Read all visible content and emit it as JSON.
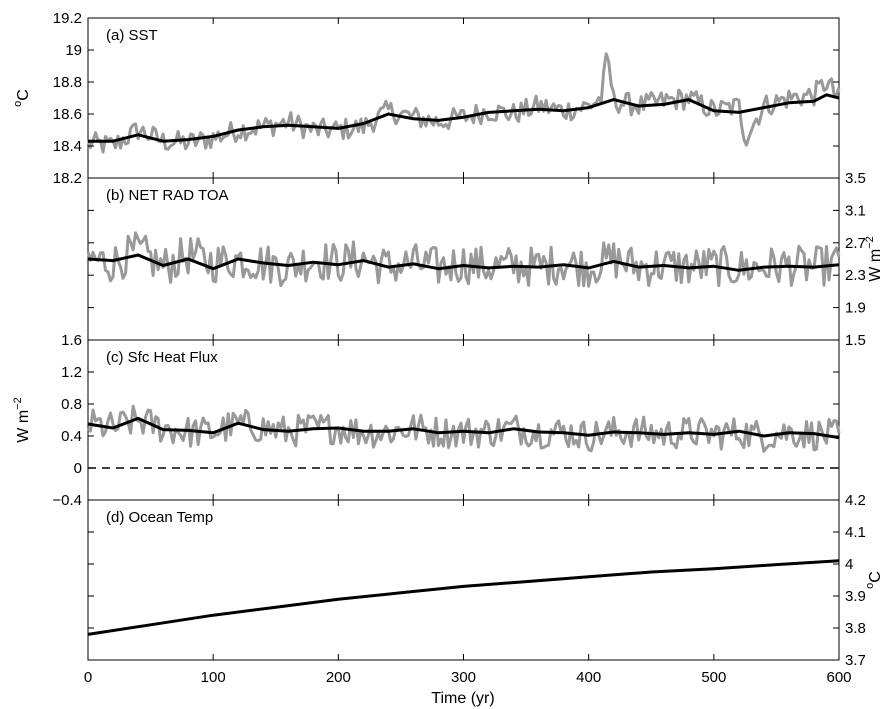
{
  "chart_data": {
    "type": "line",
    "xlabel": "Time (yr)",
    "xlim": [
      0,
      600
    ],
    "xticks": [
      "0",
      "100",
      "200",
      "300",
      "400",
      "500",
      "600"
    ],
    "colors": {
      "annual": "#999999",
      "smoothed": "#000000",
      "zero_line": "#000000"
    },
    "panels": [
      {
        "title": "(a) SST",
        "ylabel": "C",
        "ylabel_sup": "o",
        "ylabel_side": "left",
        "ylim": [
          18.2,
          19.2
        ],
        "yticks": [
          "18.2",
          "18.4",
          "18.6",
          "18.8",
          "19",
          "19.2"
        ],
        "series": [
          {
            "style": "annual-gray",
            "x": [
              0,
              20,
              40,
              60,
              80,
              100,
              120,
              140,
              160,
              180,
              200,
              220,
              240,
              260,
              280,
              300,
              320,
              340,
              360,
              380,
              400,
              410,
              415,
              420,
              440,
              460,
              480,
              500,
              520,
              525,
              540,
              560,
              580,
              590,
              600
            ],
            "y": [
              18.42,
              18.4,
              18.5,
              18.43,
              18.42,
              18.45,
              18.5,
              18.52,
              18.55,
              18.5,
              18.5,
              18.52,
              18.62,
              18.58,
              18.55,
              18.58,
              18.62,
              18.6,
              18.65,
              18.62,
              18.65,
              18.7,
              18.97,
              18.68,
              18.65,
              18.68,
              18.7,
              18.62,
              18.65,
              18.45,
              18.65,
              18.7,
              18.72,
              18.8,
              18.7
            ]
          },
          {
            "style": "smoothed-black",
            "x": [
              0,
              20,
              40,
              60,
              80,
              100,
              120,
              140,
              160,
              180,
              200,
              220,
              240,
              260,
              280,
              300,
              320,
              340,
              360,
              380,
              400,
              420,
              440,
              460,
              480,
              500,
              520,
              540,
              560,
              580,
              590,
              600
            ],
            "y": [
              18.43,
              18.43,
              18.47,
              18.43,
              18.44,
              18.46,
              18.5,
              18.52,
              18.53,
              18.52,
              18.51,
              18.54,
              18.6,
              18.57,
              18.56,
              18.58,
              18.61,
              18.62,
              18.63,
              18.62,
              18.64,
              18.69,
              18.65,
              18.66,
              18.69,
              18.62,
              18.61,
              18.64,
              18.67,
              18.68,
              18.72,
              18.7
            ]
          }
        ]
      },
      {
        "title": "(b) NET RAD TOA",
        "ylabel": "W m",
        "ylabel_sup": "−2",
        "ylabel_side": "right",
        "ylim": [
          1.5,
          3.5
        ],
        "yticks": [
          "1.5",
          "1.9",
          "2.3",
          "2.7",
          "3.1",
          "3.5"
        ],
        "series": [
          {
            "style": "annual-gray",
            "x": [
              0,
              20,
              40,
              60,
              80,
              100,
              120,
              140,
              160,
              180,
              200,
              220,
              240,
              260,
              280,
              300,
              320,
              340,
              360,
              380,
              400,
              420,
              440,
              460,
              480,
              500,
              520,
              540,
              560,
              580,
              600
            ],
            "y": [
              2.5,
              2.45,
              2.6,
              2.4,
              2.55,
              2.45,
              2.5,
              2.45,
              2.4,
              2.5,
              2.45,
              2.5,
              2.4,
              2.45,
              2.4,
              2.45,
              2.4,
              2.42,
              2.4,
              2.45,
              2.4,
              2.5,
              2.4,
              2.42,
              2.4,
              2.42,
              2.38,
              2.4,
              2.42,
              2.4,
              2.45
            ]
          },
          {
            "style": "smoothed-black",
            "x": [
              0,
              20,
              40,
              60,
              80,
              100,
              120,
              140,
              160,
              180,
              200,
              220,
              240,
              260,
              280,
              300,
              320,
              340,
              360,
              380,
              400,
              420,
              440,
              460,
              480,
              500,
              520,
              540,
              560,
              580,
              600
            ],
            "y": [
              2.5,
              2.48,
              2.55,
              2.42,
              2.5,
              2.38,
              2.5,
              2.45,
              2.42,
              2.46,
              2.43,
              2.48,
              2.4,
              2.44,
              2.38,
              2.42,
              2.39,
              2.41,
              2.4,
              2.43,
              2.39,
              2.47,
              2.4,
              2.42,
              2.39,
              2.41,
              2.36,
              2.4,
              2.41,
              2.4,
              2.43
            ]
          }
        ]
      },
      {
        "title": "(c) Sfc Heat Flux",
        "ylabel": "W m",
        "ylabel_sup": "−2",
        "ylabel_side": "left",
        "ylim": [
          -0.4,
          1.6
        ],
        "yticks": [
          "−0.4",
          "0",
          "0.4",
          "0.8",
          "1.2",
          "1.6"
        ],
        "zero_line": 0,
        "series": [
          {
            "style": "annual-gray",
            "x": [
              0,
              20,
              40,
              60,
              80,
              100,
              120,
              140,
              160,
              180,
              200,
              220,
              240,
              260,
              280,
              300,
              320,
              340,
              360,
              380,
              400,
              420,
              440,
              460,
              480,
              500,
              520,
              540,
              560,
              580,
              600
            ],
            "y": [
              0.55,
              0.5,
              0.6,
              0.5,
              0.45,
              0.45,
              0.55,
              0.5,
              0.45,
              0.5,
              0.5,
              0.45,
              0.45,
              0.5,
              0.45,
              0.45,
              0.45,
              0.5,
              0.45,
              0.45,
              0.4,
              0.45,
              0.45,
              0.42,
              0.45,
              0.42,
              0.45,
              0.4,
              0.45,
              0.42,
              0.4
            ]
          },
          {
            "style": "smoothed-black",
            "x": [
              0,
              20,
              40,
              60,
              80,
              100,
              120,
              140,
              160,
              180,
              200,
              220,
              240,
              260,
              280,
              300,
              320,
              340,
              360,
              380,
              400,
              420,
              440,
              460,
              480,
              500,
              520,
              540,
              560,
              580,
              600
            ],
            "y": [
              0.55,
              0.5,
              0.62,
              0.48,
              0.47,
              0.44,
              0.56,
              0.48,
              0.46,
              0.49,
              0.5,
              0.46,
              0.46,
              0.49,
              0.44,
              0.46,
              0.44,
              0.49,
              0.45,
              0.44,
              0.41,
              0.45,
              0.44,
              0.42,
              0.44,
              0.42,
              0.46,
              0.4,
              0.44,
              0.43,
              0.38
            ]
          }
        ]
      },
      {
        "title": "(d) Ocean Temp",
        "ylabel": "C",
        "ylabel_sup": "o",
        "ylabel_side": "right",
        "ylim": [
          3.7,
          4.2
        ],
        "yticks": [
          "3.7",
          "3.8",
          "3.9",
          "4",
          "4.1",
          "4.2"
        ],
        "series": [
          {
            "style": "smoothed-black",
            "x": [
              0,
              50,
              100,
              150,
              200,
              250,
              300,
              350,
              400,
              450,
              500,
              550,
              600
            ],
            "y": [
              3.78,
              3.81,
              3.84,
              3.865,
              3.89,
              3.91,
              3.93,
              3.945,
              3.96,
              3.975,
              3.985,
              3.998,
              4.01
            ]
          }
        ]
      }
    ]
  }
}
